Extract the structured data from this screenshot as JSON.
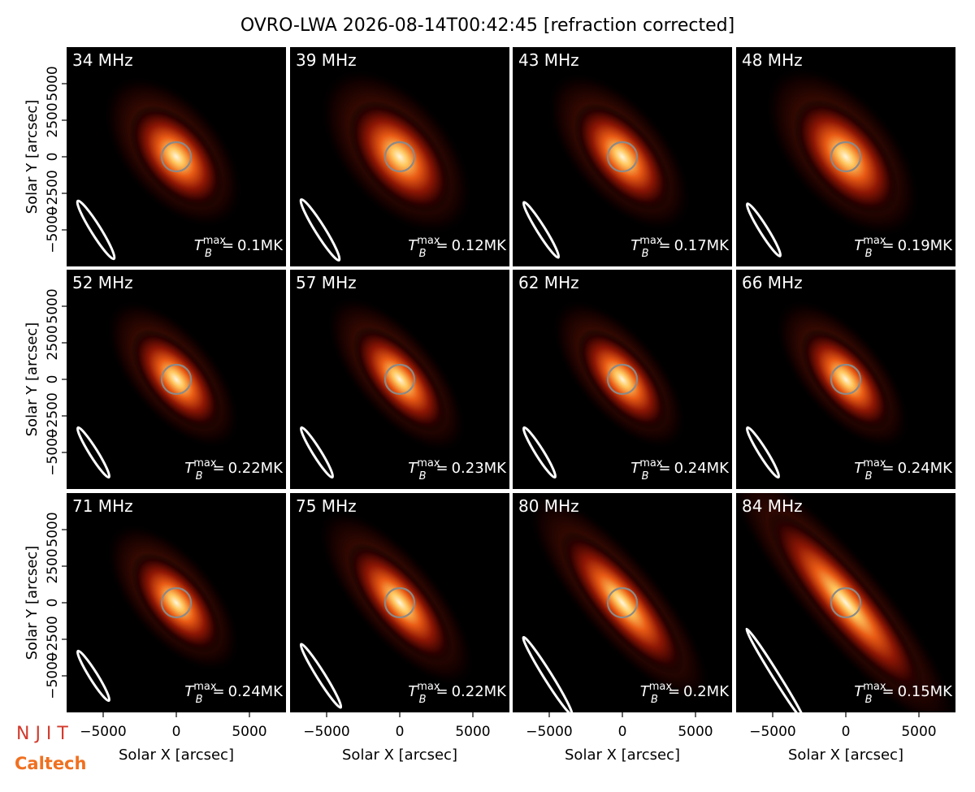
{
  "title": "OVRO-LWA 2026-08-14T00:42:45 [refraction corrected]",
  "axes": {
    "xlabel": "Solar X [arcsec]",
    "ylabel": "Solar Y [arcsec]",
    "xlim": [
      -7500,
      7500
    ],
    "ylim": [
      -7500,
      7500
    ],
    "xticks": [
      {
        "value": -5000,
        "label": "−5000"
      },
      0,
      5000
    ],
    "yticks": [
      {
        "value": -5000,
        "label": "−5000"
      },
      {
        "value": -2500,
        "label": "−2500"
      },
      0,
      2500,
      5000
    ]
  },
  "tb_symbol": "T",
  "tb_sub": "B",
  "tb_sup": "max",
  "tb_equals": "=",
  "logos": [
    "N J I T",
    "Caltech"
  ],
  "chart_data": [
    {
      "type": "image",
      "title": "34 MHz",
      "tb_max": 0.1,
      "tb_max_label": "0.1MK"
    },
    {
      "type": "image",
      "title": "39 MHz",
      "tb_max": 0.12,
      "tb_max_label": "0.12MK"
    },
    {
      "type": "image",
      "title": "43 MHz",
      "tb_max": 0.17,
      "tb_max_label": "0.17MK"
    },
    {
      "type": "image",
      "title": "48 MHz",
      "tb_max": 0.19,
      "tb_max_label": "0.19MK"
    },
    {
      "type": "image",
      "title": "52 MHz",
      "tb_max": 0.22,
      "tb_max_label": "0.22MK"
    },
    {
      "type": "image",
      "title": "57 MHz",
      "tb_max": 0.23,
      "tb_max_label": "0.23MK"
    },
    {
      "type": "image",
      "title": "62 MHz",
      "tb_max": 0.24,
      "tb_max_label": "0.24MK"
    },
    {
      "type": "image",
      "title": "66 MHz",
      "tb_max": 0.24,
      "tb_max_label": "0.24MK"
    },
    {
      "type": "image",
      "title": "71 MHz",
      "tb_max": 0.24,
      "tb_max_label": "0.24MK"
    },
    {
      "type": "image",
      "title": "75 MHz",
      "tb_max": 0.22,
      "tb_max_label": "0.22MK"
    },
    {
      "type": "image",
      "title": "80 MHz",
      "tb_max": 0.2,
      "tb_max_label": "0.2MK"
    },
    {
      "type": "image",
      "title": "84 MHz",
      "tb_max": 0.15,
      "tb_max_label": "0.15MK"
    }
  ]
}
